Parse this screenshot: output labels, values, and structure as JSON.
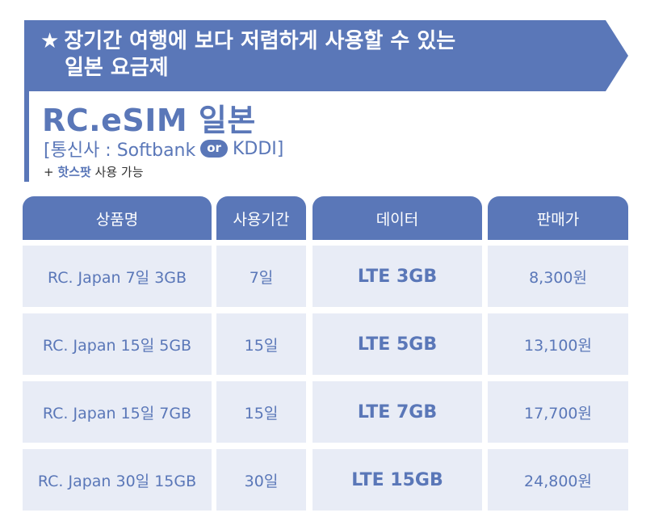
{
  "banner": {
    "star": "★",
    "line1": "장기간 여행에 보다 저렴하게 사용할 수 있는",
    "line2": "일본 요금제"
  },
  "product": {
    "title": "RC.eSIM 일본",
    "carrier_prefix": "[통신사 : Softbank",
    "or_badge": "or",
    "carrier_suffix": "KDDI]",
    "hotspot_plus": "+",
    "hotspot_highlight": "핫스팟",
    "hotspot_rest": "사용 가능"
  },
  "table": {
    "headers": [
      "상품명",
      "사용기간",
      "데이터",
      "판매가"
    ],
    "rows": [
      {
        "name": "RC. Japan 7일 3GB",
        "period": "7일",
        "data": "LTE 3GB",
        "price": "8,300원"
      },
      {
        "name": "RC. Japan 15일 5GB",
        "period": "15일",
        "data": "LTE 5GB",
        "price": "13,100원"
      },
      {
        "name": "RC. Japan 15일 7GB",
        "period": "15일",
        "data": "LTE 7GB",
        "price": "17,700원"
      },
      {
        "name": "RC. Japan 30일 15GB",
        "period": "30일",
        "data": "LTE 15GB",
        "price": "24,800원"
      }
    ]
  },
  "colors": {
    "accent": "#5a77b8",
    "cell_bg": "#e8ecf6"
  }
}
